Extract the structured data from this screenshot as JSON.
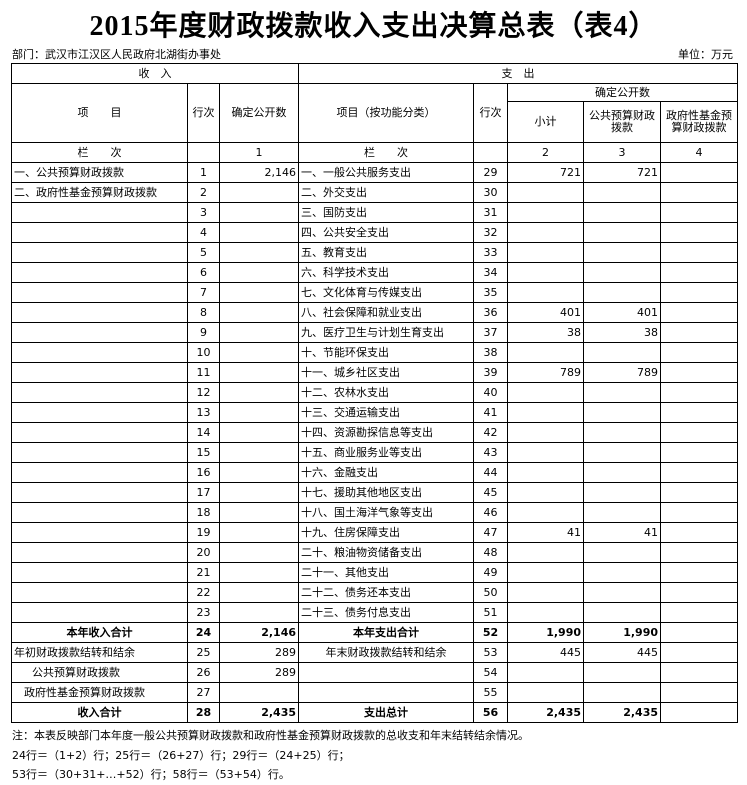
{
  "header": {
    "title": "2015年度财政拨款收入支出决算总表（表4）",
    "department": "部门：武汉市江汉区人民政府北湖街办事处",
    "unit": "单位：万元"
  },
  "table": {
    "head": {
      "income": "收　入",
      "expense": "支　出",
      "item": "项　　目",
      "line": "行次",
      "amount": "确定公开数",
      "exp_item": "项目（按功能分类）",
      "exp_line": "行次",
      "exp_amount": "确定公开数",
      "subtotal": "小计",
      "public": "公共预算财政拨款",
      "fund": "政府性基金预算财政拨款",
      "col_label": "栏　　次",
      "col1": "1",
      "exp_col_label": "栏　　次",
      "col2": "2",
      "col3": "3",
      "col4": "4"
    },
    "rows": [
      [
        "一、公共预算财政拨款",
        "1",
        "2,146",
        "一、一般公共服务支出",
        "29",
        "721",
        "721",
        null
      ],
      [
        "二、政府性基金预算财政拨款",
        "2",
        null,
        "二、外交支出",
        "30",
        null,
        null,
        null
      ],
      [
        null,
        "3",
        null,
        "三、国防支出",
        "31",
        null,
        null,
        null
      ],
      [
        null,
        "4",
        null,
        "四、公共安全支出",
        "32",
        null,
        null,
        null
      ],
      [
        null,
        "5",
        null,
        "五、教育支出",
        "33",
        null,
        null,
        null
      ],
      [
        null,
        "6",
        null,
        "六、科学技术支出",
        "34",
        null,
        null,
        null
      ],
      [
        null,
        "7",
        null,
        "七、文化体育与传媒支出",
        "35",
        null,
        null,
        null
      ],
      [
        null,
        "8",
        null,
        "八、社会保障和就业支出",
        "36",
        "401",
        "401",
        null
      ],
      [
        null,
        "9",
        null,
        "九、医疗卫生与计划生育支出",
        "37",
        "38",
        "38",
        null
      ],
      [
        null,
        "10",
        null,
        "十、节能环保支出",
        "38",
        null,
        null,
        null
      ],
      [
        null,
        "11",
        null,
        "十一、城乡社区支出",
        "39",
        "789",
        "789",
        null
      ],
      [
        null,
        "12",
        null,
        "十二、农林水支出",
        "40",
        null,
        null,
        null
      ],
      [
        null,
        "13",
        null,
        "十三、交通运输支出",
        "41",
        null,
        null,
        null
      ],
      [
        null,
        "14",
        null,
        "十四、资源勘探信息等支出",
        "42",
        null,
        null,
        null
      ],
      [
        null,
        "15",
        null,
        "十五、商业服务业等支出",
        "43",
        null,
        null,
        null
      ],
      [
        null,
        "16",
        null,
        "十六、金融支出",
        "44",
        null,
        null,
        null
      ],
      [
        null,
        "17",
        null,
        "十七、援助其他地区支出",
        "45",
        null,
        null,
        null
      ],
      [
        null,
        "18",
        null,
        "十八、国土海洋气象等支出",
        "46",
        null,
        null,
        null
      ],
      [
        null,
        "19",
        null,
        "十九、住房保障支出",
        "47",
        "41",
        "41",
        null
      ],
      [
        null,
        "20",
        null,
        "二十、粮油物资储备支出",
        "48",
        null,
        null,
        null
      ],
      [
        null,
        "21",
        null,
        "二十一、其他支出",
        "49",
        null,
        null,
        null
      ],
      [
        null,
        "22",
        null,
        "二十二、债务还本支出",
        "50",
        null,
        null,
        null
      ],
      [
        null,
        "23",
        null,
        "二十三、债务付息支出",
        "51",
        null,
        null,
        null
      ],
      [
        "本年收入合计",
        "24",
        "2,146",
        "本年支出合计",
        "52",
        "1,990",
        "1,990",
        null
      ],
      [
        "年初财政拨款结转和结余",
        "25",
        "289",
        "年末财政拨款结转和结余",
        "53",
        "445",
        "445",
        null
      ],
      [
        "公共预算财政拨款",
        "26",
        "289",
        null,
        "54",
        null,
        null,
        null
      ],
      [
        "政府性基金预算财政拨款",
        "27",
        null,
        null,
        "55",
        null,
        null,
        null
      ],
      [
        "收入合计",
        "28",
        "2,435",
        "支出总计",
        "56",
        "2,435",
        "2,435",
        null
      ]
    ]
  },
  "notes": [
    "注：本表反映部门本年度一般公共预算财政拨款和政府性基金预算财政拨款的总收支和年末结转结余情况。",
    "24行＝（1+2）行；25行＝（26+27）行；29行＝（24+25）行；",
    "53行＝（30+31+…+52）行；58行＝（53+54）行。"
  ]
}
